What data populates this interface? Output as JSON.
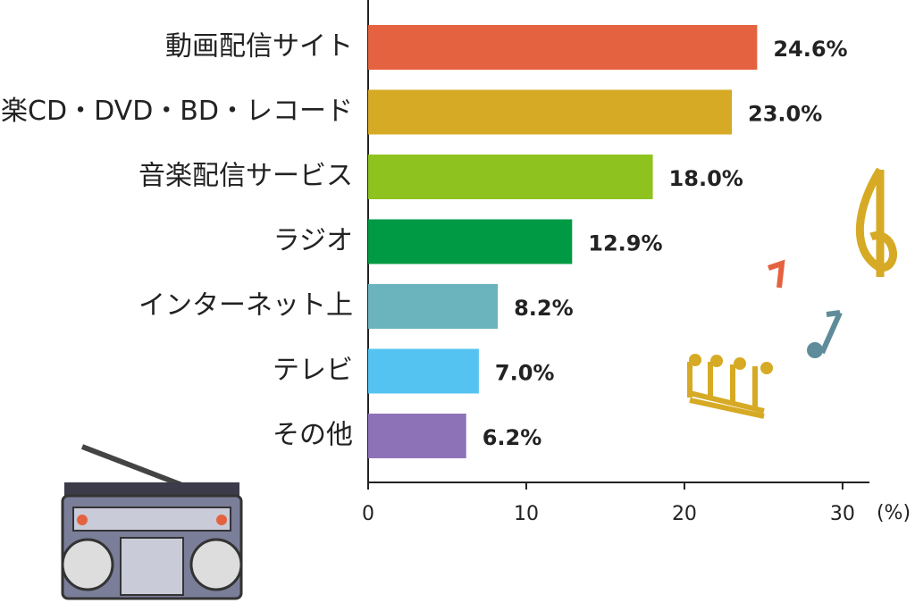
{
  "chart_data": {
    "type": "bar",
    "orientation": "horizontal",
    "categories": [
      "動画配信サイト",
      "音楽CD・DVD・BD・レコード",
      "音楽配信サービス",
      "ラジオ",
      "インターネット上",
      "テレビ",
      "その他"
    ],
    "values": [
      24.6,
      23.0,
      18.0,
      12.9,
      8.2,
      7.0,
      6.2
    ],
    "value_labels": [
      "24.6%",
      "23.0%",
      "18.0%",
      "12.9%",
      "8.2%",
      "7.0%",
      "6.2%"
    ],
    "colors": [
      "#e4623f",
      "#d6aa24",
      "#8dc21f",
      "#009a44",
      "#6bb3bd",
      "#54c3f1",
      "#8e72b8"
    ],
    "x_label": "(%)",
    "xlim": [
      0,
      31.7
    ],
    "xticks": [
      0,
      10,
      20,
      30
    ],
    "grid": false
  }
}
